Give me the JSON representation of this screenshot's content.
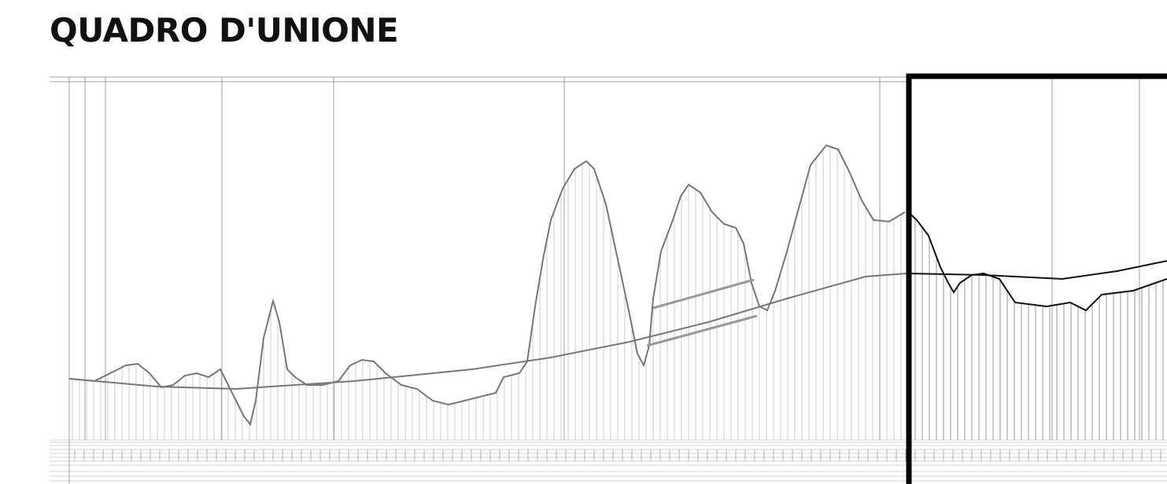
{
  "title": "QUADRO D'UNIONE"
}
